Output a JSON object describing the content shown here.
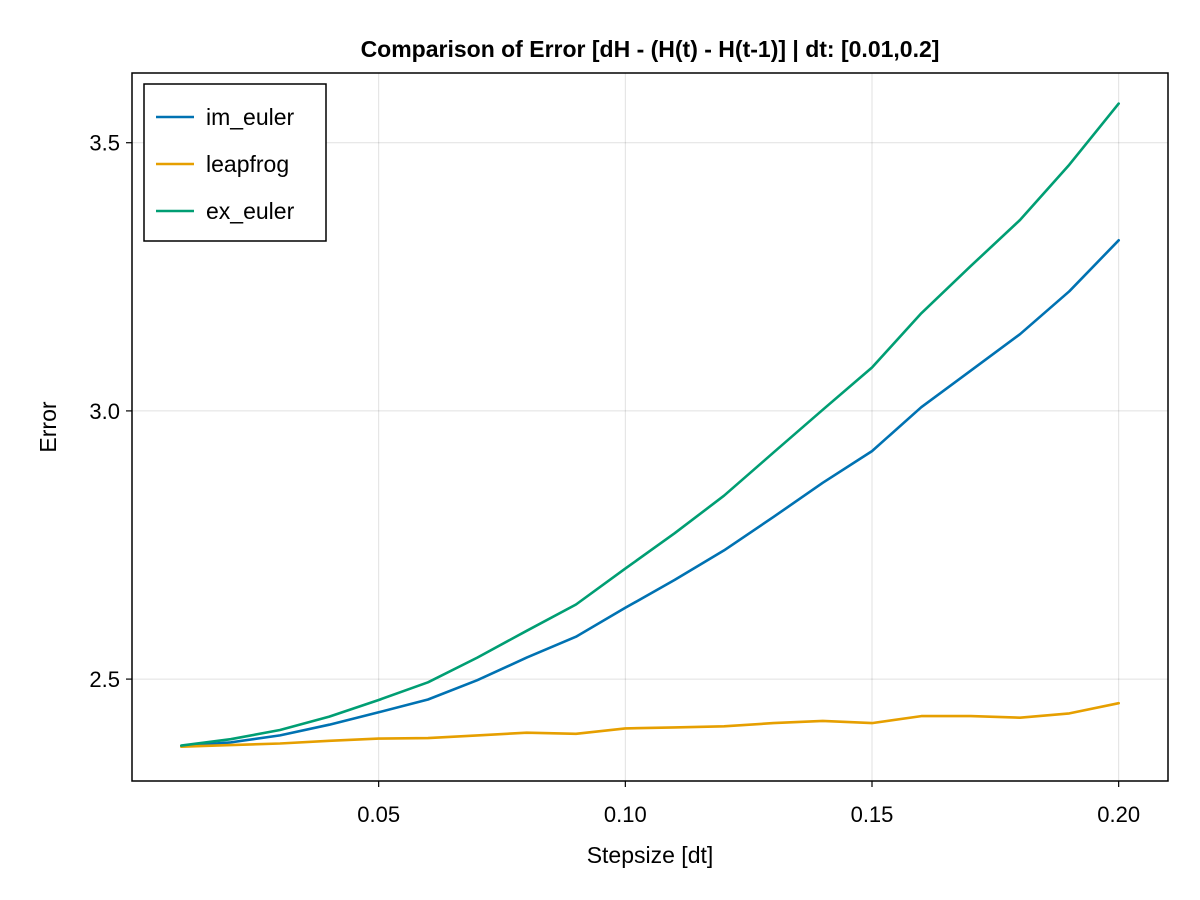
{
  "chart_data": {
    "type": "line",
    "title": "Comparison of Error [dH - (H(t) - H(t-1)] | dt: [0.01,0.2]",
    "xlabel": "Stepsize [dt]",
    "ylabel": "Error",
    "xlim": [
      0.0,
      0.21
    ],
    "ylim": [
      2.31,
      3.63
    ],
    "xticks": [
      0.05,
      0.1,
      0.15,
      0.2
    ],
    "xtick_labels": [
      "0.05",
      "0.10",
      "0.15",
      "0.20"
    ],
    "yticks": [
      2.5,
      3.0,
      3.5
    ],
    "ytick_labels": [
      "2.5",
      "3.0",
      "3.5"
    ],
    "grid": true,
    "legend_position": "top-left",
    "x": [
      0.01,
      0.02,
      0.03,
      0.04,
      0.05,
      0.06,
      0.07,
      0.08,
      0.09,
      0.1,
      0.11,
      0.12,
      0.13,
      0.14,
      0.15,
      0.16,
      0.17,
      0.18,
      0.19,
      0.2
    ],
    "series": [
      {
        "name": "im_euler",
        "color": "#0072b2",
        "values": [
          2.375,
          2.382,
          2.395,
          2.415,
          2.438,
          2.462,
          2.498,
          2.54,
          2.579,
          2.633,
          2.685,
          2.74,
          2.802,
          2.866,
          2.925,
          3.007,
          3.075,
          3.143,
          3.223,
          3.318
        ]
      },
      {
        "name": "leapfrog",
        "color": "#e69f00",
        "values": [
          2.374,
          2.377,
          2.38,
          2.385,
          2.389,
          2.39,
          2.395,
          2.4,
          2.398,
          2.408,
          2.41,
          2.412,
          2.418,
          2.422,
          2.418,
          2.431,
          2.431,
          2.428,
          2.436,
          2.455
        ]
      },
      {
        "name": "ex_euler",
        "color": "#009e73",
        "values": [
          2.376,
          2.388,
          2.405,
          2.43,
          2.461,
          2.494,
          2.54,
          2.59,
          2.639,
          2.706,
          2.772,
          2.842,
          2.922,
          3.002,
          3.081,
          3.182,
          3.27,
          3.356,
          3.459,
          3.573
        ]
      }
    ]
  }
}
